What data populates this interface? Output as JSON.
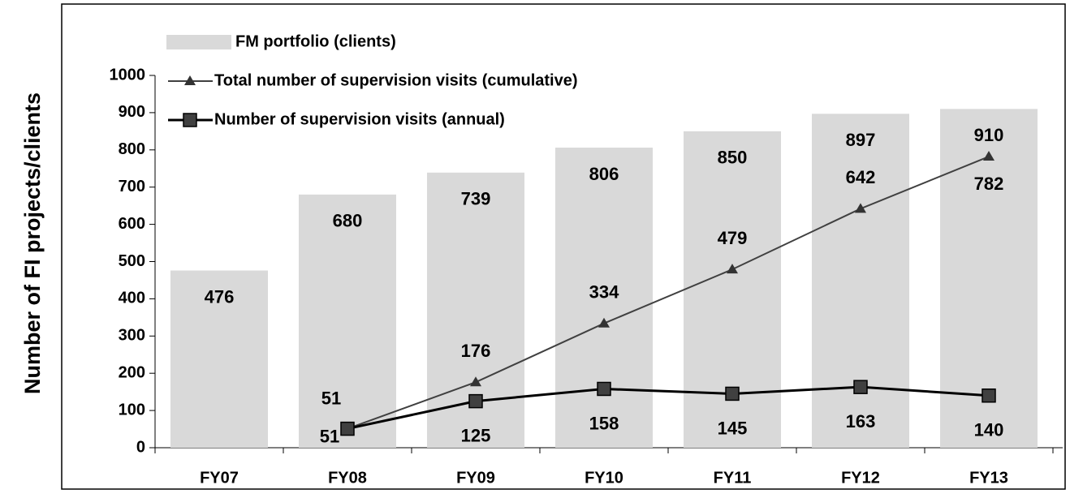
{
  "chart_data": {
    "type": "combo",
    "ylabel": "Number of FI projects/clients",
    "categories": [
      "FY07",
      "FY08",
      "FY09",
      "FY10",
      "FY11",
      "FY12",
      "FY13"
    ],
    "series": [
      {
        "name": "FM portfolio (clients)",
        "type": "bar",
        "color": "#d9d9d9",
        "values": [
          476,
          680,
          739,
          806,
          850,
          897,
          910
        ]
      },
      {
        "name": "Total number of supervision visits (cumulative)",
        "type": "line",
        "marker": "triangle",
        "color": "#404040",
        "values": [
          null,
          51,
          176,
          334,
          479,
          642,
          782
        ]
      },
      {
        "name": "Number of supervision visits (annual)",
        "type": "line",
        "marker": "square",
        "color": "#000000",
        "values": [
          null,
          51,
          125,
          158,
          145,
          163,
          140
        ]
      }
    ],
    "ylim": [
      0,
      1000
    ],
    "yticks": [
      0,
      100,
      200,
      300,
      400,
      500,
      600,
      700,
      800,
      900,
      1000
    ],
    "grid": false,
    "legend": "top-left"
  }
}
